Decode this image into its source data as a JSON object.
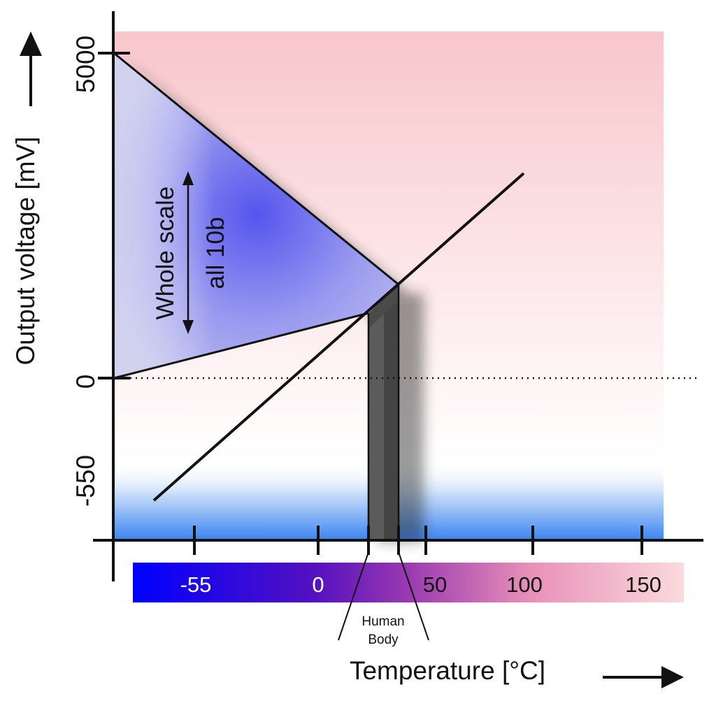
{
  "diagram": {
    "y_axis": {
      "label": "Output voltage [mV]",
      "ticks": [
        "5000",
        "0",
        "-550"
      ]
    },
    "x_axis": {
      "label": "Temperature [°C]",
      "ticks": [
        "-55",
        "0",
        "50",
        "100",
        "150"
      ]
    },
    "annotations": {
      "whole_scale": "Whole scale",
      "all_10b": "all 10b",
      "human_body_line1": "Human",
      "human_body_line2": "Body"
    },
    "colors": {
      "hot_background": "#f8c8cc",
      "cold_background": "#3b84f0",
      "range_fan": "#6f6fee",
      "human_band": "#555555",
      "scale_cold": "#0000ff",
      "scale_mid": "#9a3ab0",
      "scale_hot": "#fbd8dc"
    }
  }
}
